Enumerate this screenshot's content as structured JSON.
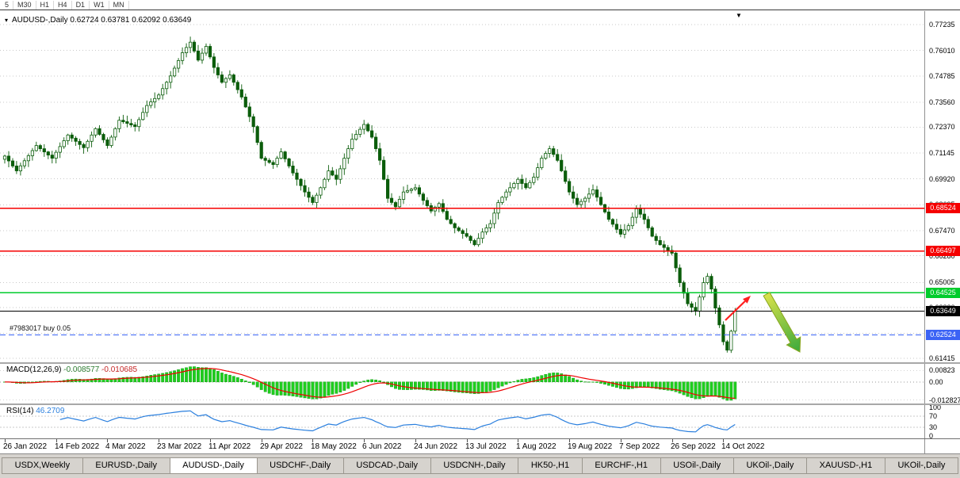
{
  "window": {
    "toolbar_periods": [
      "5",
      "M30",
      "H1",
      "H4",
      "D1",
      "W1",
      "MN"
    ]
  },
  "chart_data": {
    "type": "candlestick",
    "symbol": "AUDUSD-",
    "timeframe": "Daily",
    "info_line": "AUDUSD-,Daily 0.62724 0.63781 0.62092 0.63649",
    "marker_icon": "▾",
    "shift_marker": "▼",
    "ohlc_current": {
      "open": "0.62724",
      "high": "0.63781",
      "low": "0.62092",
      "close": "0.63649"
    },
    "ylim": [
      0.61415,
      0.77235
    ],
    "y_axis_labels": [
      "0.77235",
      "0.76010",
      "0.74785",
      "0.73560",
      "0.72370",
      "0.71145",
      "0.69920",
      "0.68695",
      "0.67470",
      "0.66280",
      "0.65005",
      "0.63820",
      "0.62595",
      "0.61415"
    ],
    "x_labels": [
      "26 Jan 2022",
      "14 Feb 2022",
      "4 Mar 2022",
      "23 Mar 2022",
      "11 Apr 2022",
      "29 Apr 2022",
      "18 May 2022",
      "6 Jun 2022",
      "24 Jun 2022",
      "13 Jul 2022",
      "1 Aug 2022",
      "19 Aug 2022",
      "7 Sep 2022",
      "26 Sep 2022",
      "14 Oct 2022"
    ],
    "up_color": "#ffffff",
    "down_color": "#0b5d0b",
    "wick_color": "#0b5d0b",
    "hlines": [
      {
        "price": 0.68524,
        "tag": "0.68524",
        "color": "#f50000",
        "style": "solid",
        "width": 1.3
      },
      {
        "price": 0.66497,
        "tag": "0.66497",
        "color": "#f50000",
        "style": "solid",
        "width": 1.3
      },
      {
        "price": 0.64525,
        "tag": "0.64525",
        "color": "#00cc2c",
        "style": "solid",
        "width": 1.8
      },
      {
        "price": 0.63649,
        "tag": "0.63649",
        "color": "#000000",
        "style": "solid",
        "width": 1
      },
      {
        "price": 0.62524,
        "tag": "0.62524",
        "color": "#3b63f5",
        "style": "dashed",
        "width": 1.2
      }
    ],
    "closes": [
      0.71,
      0.7077,
      0.7053,
      0.703,
      0.7054,
      0.7078,
      0.7102,
      0.7126,
      0.715,
      0.7135,
      0.712,
      0.7105,
      0.709,
      0.7118,
      0.7145,
      0.7173,
      0.72,
      0.7185,
      0.717,
      0.7155,
      0.714,
      0.717,
      0.72,
      0.723,
      0.7203,
      0.7177,
      0.715,
      0.719,
      0.723,
      0.727,
      0.7263,
      0.7255,
      0.7248,
      0.724,
      0.7273,
      0.7307,
      0.734,
      0.7357,
      0.7373,
      0.739,
      0.742,
      0.745,
      0.748,
      0.7517,
      0.7553,
      0.759,
      0.7615,
      0.764,
      0.7598,
      0.7555,
      0.7588,
      0.762,
      0.757,
      0.752,
      0.7485,
      0.745,
      0.7468,
      0.7485,
      0.745,
      0.7415,
      0.738,
      0.7333,
      0.7287,
      0.724,
      0.7165,
      0.709,
      0.708,
      0.707,
      0.706,
      0.709,
      0.712,
      0.7087,
      0.7053,
      0.702,
      0.699,
      0.696,
      0.693,
      0.6905,
      0.688,
      0.6915,
      0.695,
      0.699,
      0.703,
      0.701,
      0.699,
      0.704,
      0.709,
      0.7135,
      0.718,
      0.7203,
      0.7227,
      0.725,
      0.722,
      0.719,
      0.7135,
      0.708,
      0.699,
      0.69,
      0.688,
      0.686,
      0.6895,
      0.693,
      0.6937,
      0.6943,
      0.695,
      0.692,
      0.689,
      0.6865,
      0.684,
      0.6858,
      0.6875,
      0.6838,
      0.68,
      0.678,
      0.676,
      0.6747,
      0.6733,
      0.672,
      0.67,
      0.668,
      0.671,
      0.674,
      0.676,
      0.678,
      0.683,
      0.688,
      0.6905,
      0.693,
      0.695,
      0.697,
      0.699,
      0.697,
      0.695,
      0.6975,
      0.7,
      0.7045,
      0.709,
      0.7113,
      0.7135,
      0.7108,
      0.708,
      0.703,
      0.698,
      0.693,
      0.69,
      0.687,
      0.6885,
      0.69,
      0.692,
      0.694,
      0.6905,
      0.687,
      0.6835,
      0.68,
      0.6777,
      0.6753,
      0.673,
      0.675,
      0.677,
      0.681,
      0.685,
      0.6825,
      0.68,
      0.676,
      0.672,
      0.67,
      0.668,
      0.6667,
      0.6653,
      0.664,
      0.657,
      0.65,
      0.645,
      0.64,
      0.6383,
      0.6365,
      0.6432,
      0.65,
      0.653,
      0.647,
      0.638,
      0.63,
      0.622,
      0.618,
      0.627,
      0.6365
    ]
  },
  "order": {
    "label": "#7983017 buy 0.05",
    "price": 0.62524
  },
  "arrows": [
    {
      "name": "red-up-arrow",
      "type": "line",
      "color": "#ff2020",
      "from": [
        915,
        390
      ],
      "to": [
        947,
        359
      ],
      "width": 2.2
    },
    {
      "name": "green-down-arrow",
      "type": "thick",
      "color_top": "#d9e24b",
      "color_bottom": "#3aa93c",
      "stroke": "#8aa61e",
      "from": [
        967,
        357
      ],
      "to": [
        1009,
        430
      ]
    }
  ],
  "macd": {
    "name": "MACD(12,26,9)",
    "main_value": "-0.008577",
    "signal_value": "-0.010685",
    "hist_color": "#1fce1f",
    "hist_stroke": "#0a9a0a",
    "signal_color": "#ee0000",
    "axis": [
      {
        "v": 0.00823,
        "t": "0.00823"
      },
      {
        "v": 0,
        "t": "0.00"
      },
      {
        "v": -0.012827,
        "t": "-0.012827"
      }
    ]
  },
  "rsi": {
    "name": "RSI(14)",
    "value": "46.2709",
    "line_color": "#2a7fde",
    "levels": [
      70,
      30
    ],
    "axis": [
      {
        "v": 100,
        "t": "100"
      },
      {
        "v": 70,
        "t": "70"
      },
      {
        "v": 30,
        "t": "30"
      },
      {
        "v": 0,
        "t": "0"
      }
    ]
  },
  "tabs": {
    "active_index": 2,
    "items": [
      "USDX,Weekly",
      "EURUSD-,Daily",
      "AUDUSD-,Daily",
      "USDCHF-,Daily",
      "USDCAD-,Daily",
      "USDCNH-,Daily",
      "HK50-,H1",
      "EURCHF-,H1",
      "USOil-,Daily",
      "UKOil-,Daily",
      "XAUUSD-,H1",
      "UKOil-,Daily"
    ]
  }
}
